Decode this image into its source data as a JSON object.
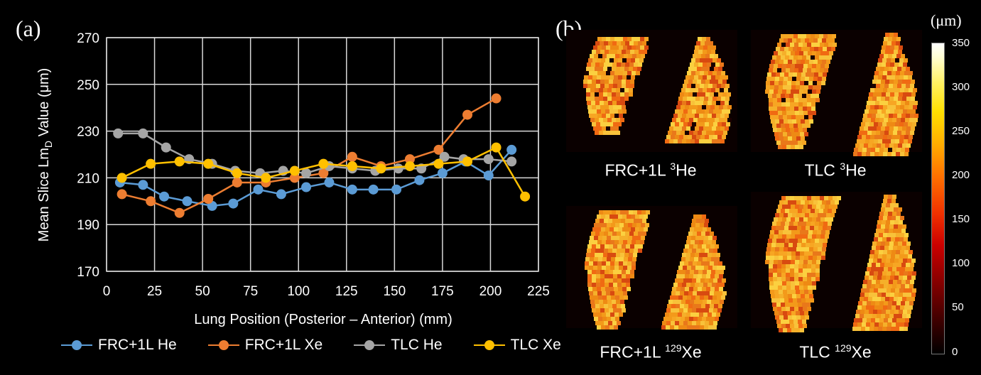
{
  "panels": {
    "a_label": "(a)",
    "b_label": "(b)"
  },
  "chart_data": {
    "type": "line",
    "xlabel": "Lung Position (Posterior – Anterior) (mm)",
    "ylabel_prefix": "Mean Slice Lm",
    "ylabel_sub": "D",
    "ylabel_suffix": " Value (μm)",
    "xlim": [
      0,
      225
    ],
    "ylim": [
      170,
      270
    ],
    "xticks": [
      0,
      25,
      50,
      75,
      100,
      125,
      150,
      175,
      200,
      225
    ],
    "yticks": [
      170,
      190,
      210,
      230,
      250,
      270
    ],
    "grid": true,
    "legend_position": "bottom",
    "series": [
      {
        "name": "FRC+1L He",
        "color": "#5b9bd5",
        "x": [
          7,
          19,
          30,
          42,
          55,
          66,
          79,
          91,
          104,
          116,
          128,
          139,
          151,
          163,
          175,
          187,
          199,
          211
        ],
        "y": [
          208,
          207,
          202,
          200,
          198,
          199,
          205,
          203,
          206,
          208,
          205,
          205,
          205,
          209,
          212,
          217,
          211,
          222
        ]
      },
      {
        "name": "FRC+1L Xe",
        "color": "#ed7d31",
        "x": [
          8,
          23,
          38,
          53,
          68,
          83,
          98,
          113,
          128,
          143,
          158,
          173,
          188,
          203
        ],
        "y": [
          203,
          200,
          195,
          201,
          208,
          208,
          210,
          212,
          219,
          215,
          218,
          222,
          237,
          244
        ]
      },
      {
        "name": "TLC He",
        "color": "#a5a5a5",
        "x": [
          6,
          19,
          31,
          43,
          55,
          67,
          80,
          92,
          104,
          116,
          128,
          140,
          152,
          164,
          176,
          186,
          199,
          211
        ],
        "y": [
          229,
          229,
          223,
          218,
          216,
          213,
          212,
          213,
          212,
          215,
          214,
          213,
          214,
          214,
          219,
          218,
          218,
          217
        ]
      },
      {
        "name": "TLC Xe",
        "color": "#ffc000",
        "x": [
          8,
          23,
          38,
          53,
          68,
          83,
          98,
          113,
          128,
          143,
          158,
          173,
          188,
          203,
          218
        ],
        "y": [
          210,
          216,
          217,
          216,
          212,
          210,
          213,
          216,
          215,
          214,
          215,
          216,
          217,
          223,
          202
        ]
      }
    ]
  },
  "maps": {
    "frc_he": {
      "label": "FRC+1L ",
      "iso": "3",
      "el": "He"
    },
    "tlc_he": {
      "label": "TLC ",
      "iso": "3",
      "el": "He"
    },
    "frc_xe": {
      "label": "FRC+1L ",
      "iso": "129",
      "el": "Xe"
    },
    "tlc_xe": {
      "label": "TLC ",
      "iso": "129",
      "el": "Xe"
    }
  },
  "colorbar": {
    "unit": "(μm)",
    "ticks": [
      "350",
      "300",
      "250",
      "200",
      "150",
      "100",
      "50",
      "0"
    ]
  }
}
